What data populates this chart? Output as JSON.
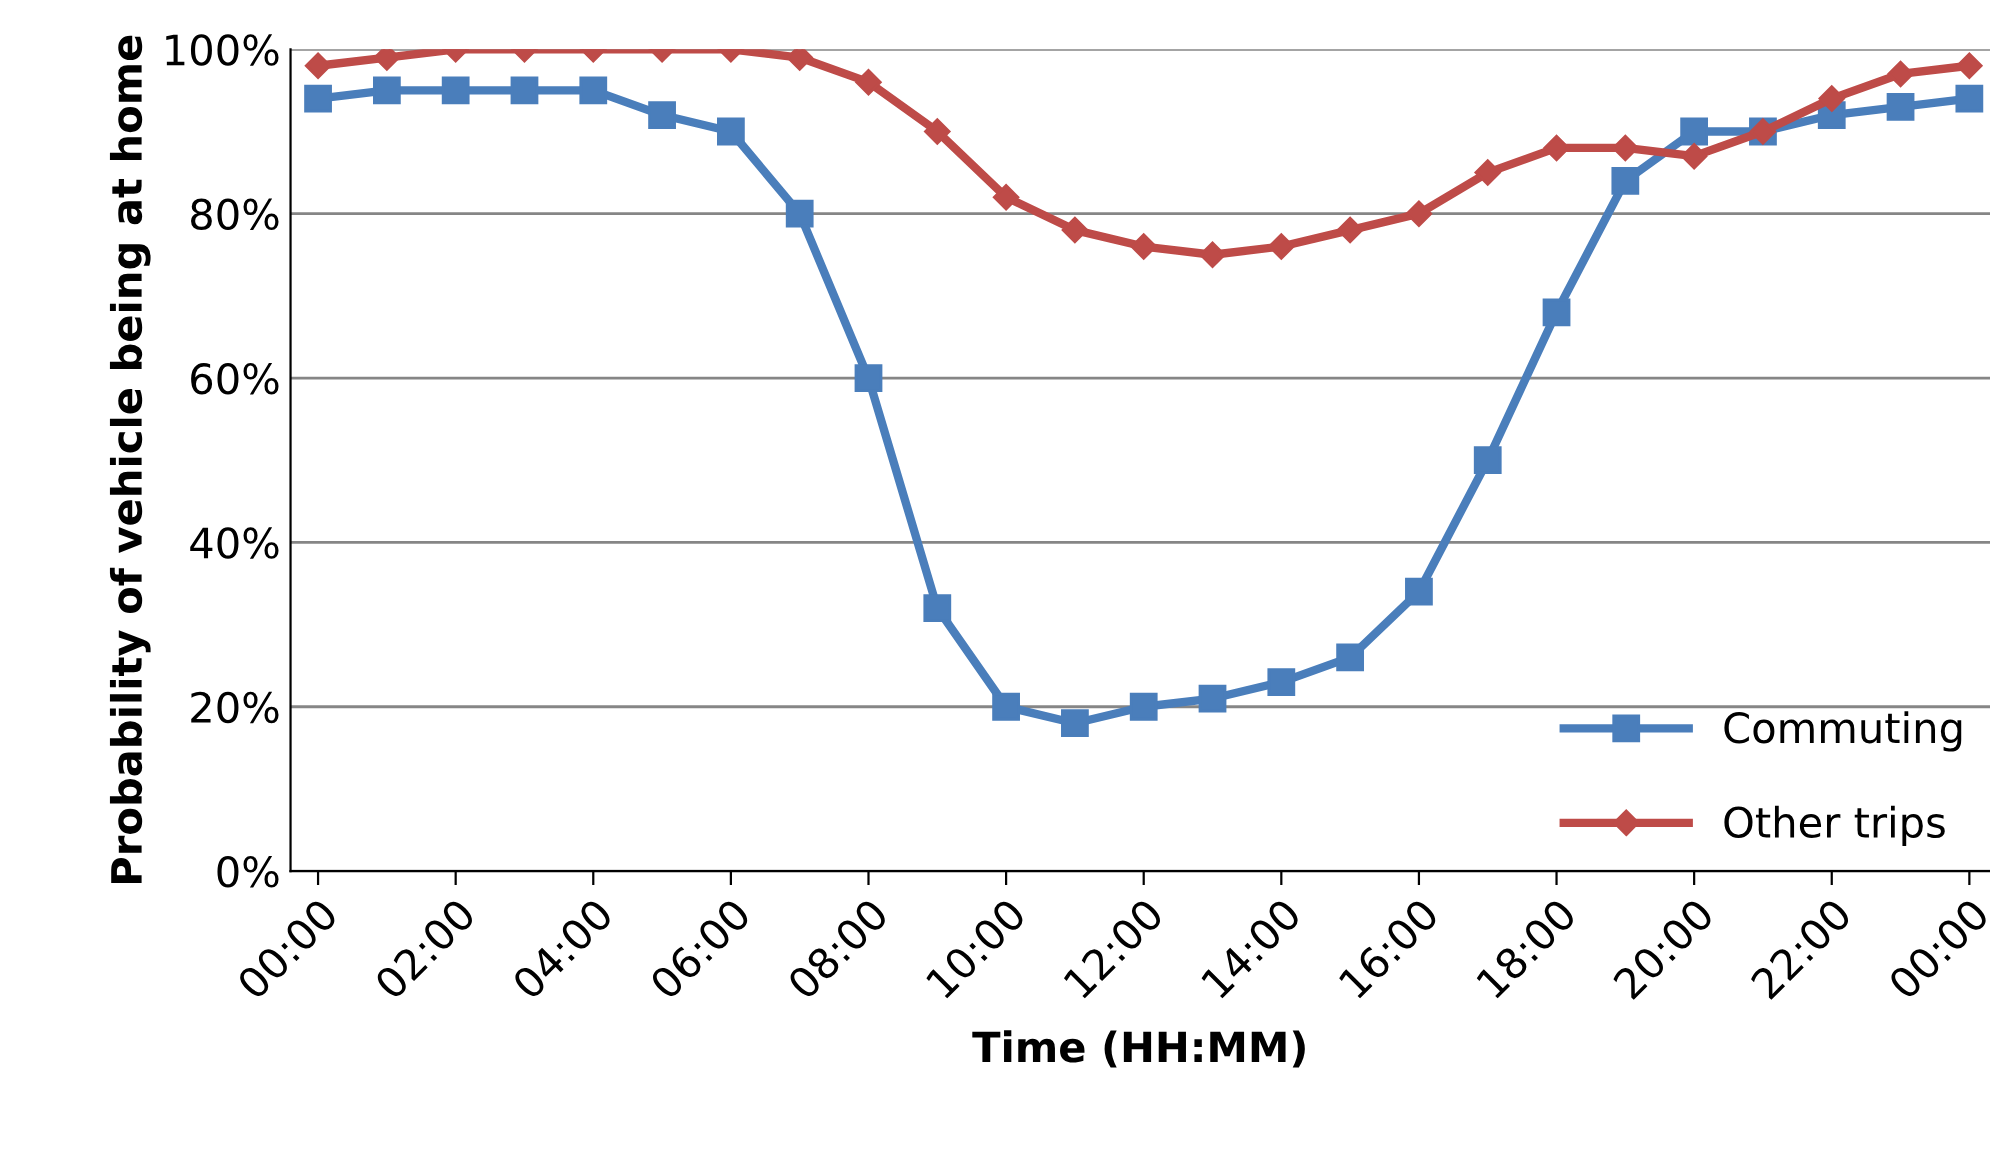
{
  "chart_data": {
    "type": "line",
    "xlabel": "Time (HH:MM)",
    "ylabel": "Probability of vehicle being at home",
    "x": [
      0,
      1,
      2,
      3,
      4,
      5,
      6,
      7,
      8,
      9,
      10,
      11,
      12,
      13,
      14,
      15,
      16,
      17,
      18,
      19,
      20,
      21,
      22,
      23,
      24
    ],
    "series": [
      {
        "name": "Commuting",
        "color": "#4a7ebb",
        "marker": "square",
        "values": [
          94,
          95,
          95,
          95,
          95,
          92,
          90,
          80,
          60,
          32,
          20,
          18,
          20,
          21,
          23,
          26,
          34,
          50,
          68,
          84,
          90,
          90,
          92,
          93,
          94
        ]
      },
      {
        "name": "Other trips",
        "color": "#be4b48",
        "marker": "diamond",
        "values": [
          98,
          99,
          100,
          100,
          100,
          100,
          100,
          99,
          96,
          90,
          82,
          78,
          76,
          75,
          76,
          78,
          80,
          85,
          88,
          88,
          87,
          90,
          94,
          97,
          98
        ]
      }
    ],
    "xlim": [
      -0.4,
      24.3
    ],
    "xticks": [
      {
        "value": 0,
        "label": "00:00"
      },
      {
        "value": 2,
        "label": "02:00"
      },
      {
        "value": 4,
        "label": "04:00"
      },
      {
        "value": 6,
        "label": "06:00"
      },
      {
        "value": 8,
        "label": "08:00"
      },
      {
        "value": 10,
        "label": "10:00"
      },
      {
        "value": 12,
        "label": "12:00"
      },
      {
        "value": 14,
        "label": "14:00"
      },
      {
        "value": 16,
        "label": "16:00"
      },
      {
        "value": 18,
        "label": "18:00"
      },
      {
        "value": 20,
        "label": "20:00"
      },
      {
        "value": 22,
        "label": "22:00"
      },
      {
        "value": 24,
        "label": "00:00"
      }
    ],
    "ylim": [
      0,
      100
    ],
    "yticks": [
      {
        "value": 0,
        "label": "0%"
      },
      {
        "value": 20,
        "label": "20%"
      },
      {
        "value": 40,
        "label": "40%"
      },
      {
        "value": 60,
        "label": "60%"
      },
      {
        "value": 80,
        "label": "80%"
      },
      {
        "value": 100,
        "label": "100%"
      }
    ],
    "grid": "y",
    "legend": "bottom right",
    "line_style": "solid"
  }
}
